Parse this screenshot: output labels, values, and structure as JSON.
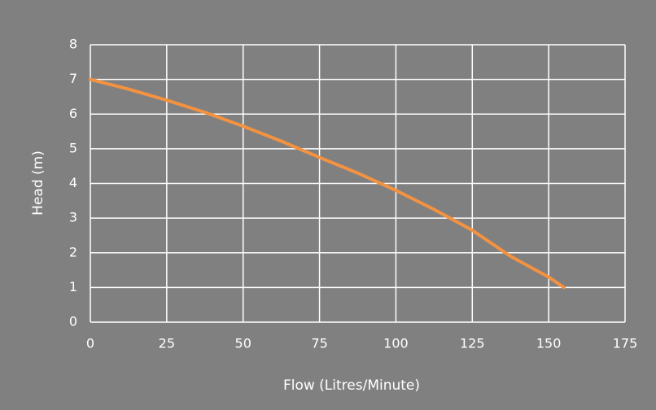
{
  "chart_data": {
    "type": "line",
    "xlabel": "Flow (Litres/Minute)",
    "ylabel": "Head (m)",
    "x": [
      0,
      12.5,
      25,
      37.5,
      50,
      62.5,
      75,
      87.5,
      100,
      112.5,
      125,
      137.5,
      150,
      155
    ],
    "series": [
      {
        "name": "Head",
        "color": "#f39240",
        "values": [
          7.0,
          6.72,
          6.4,
          6.05,
          5.65,
          5.22,
          4.75,
          4.3,
          3.8,
          3.25,
          2.65,
          1.9,
          1.3,
          1.0
        ]
      }
    ],
    "xlim": [
      0,
      175
    ],
    "xticks": [
      0,
      25,
      50,
      75,
      100,
      125,
      150,
      175
    ],
    "ylim": [
      0,
      8
    ],
    "yticks": [
      0,
      1,
      2,
      3,
      4,
      5,
      6,
      7,
      8
    ],
    "grid": true
  }
}
